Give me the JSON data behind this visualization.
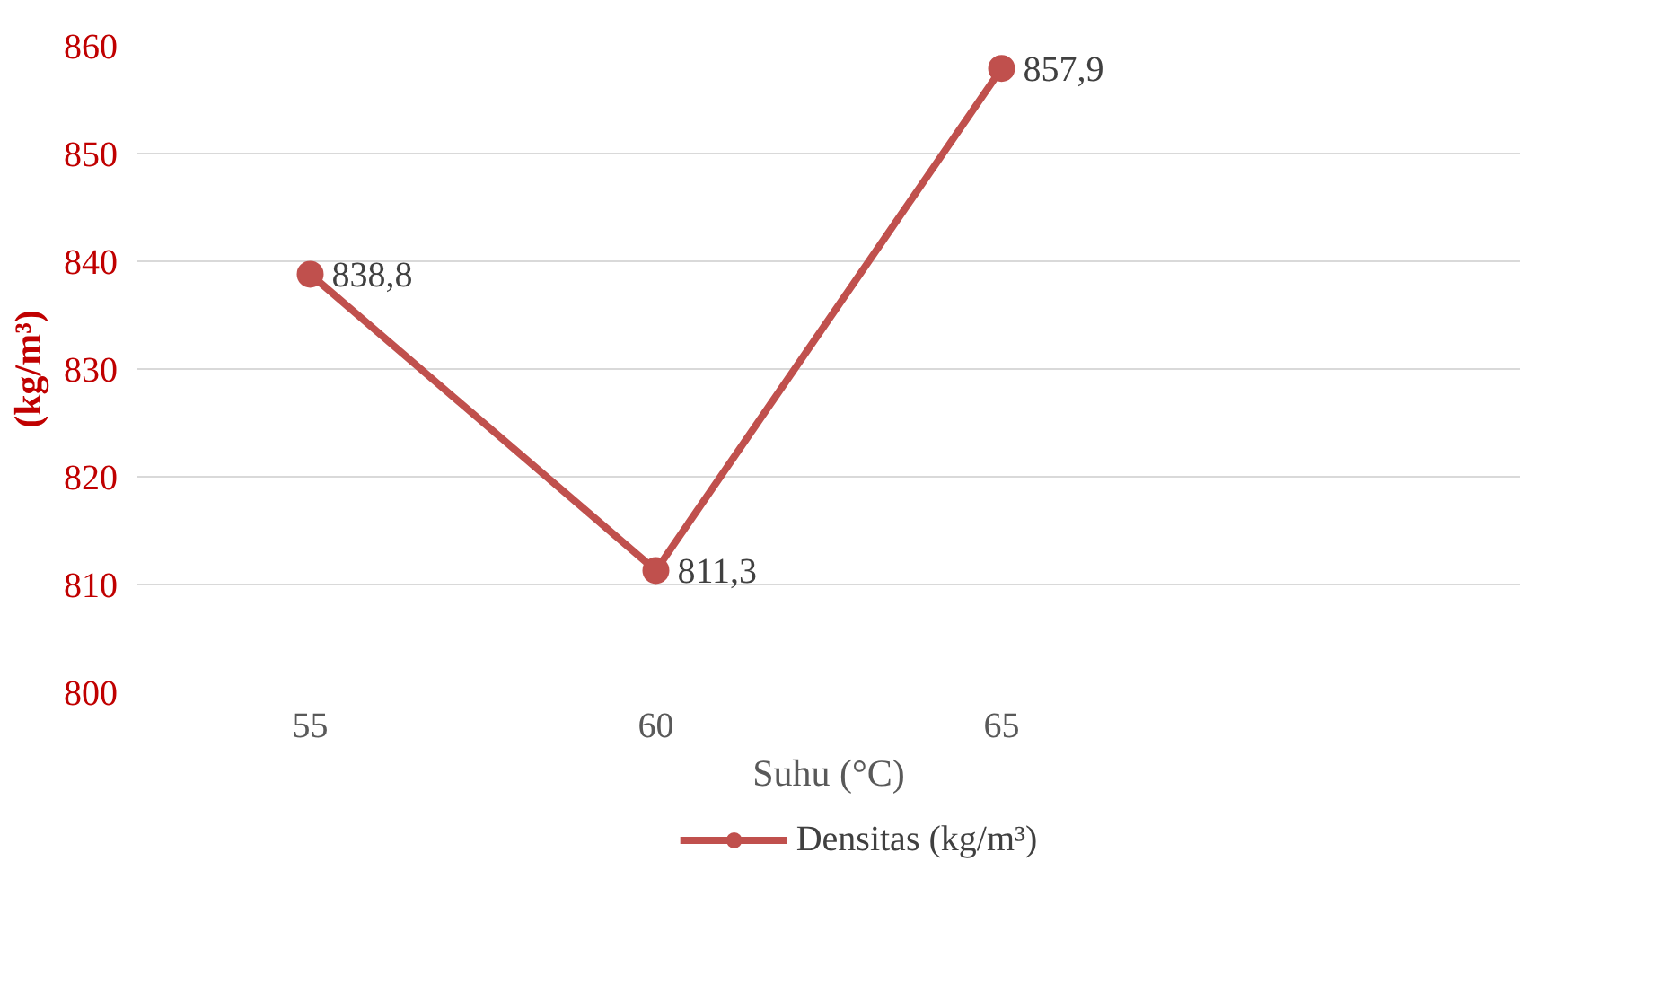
{
  "chart_data": {
    "type": "line",
    "xlabel": "Suhu (°C)",
    "ylabel": "(kg/m³)",
    "categories": [
      "55",
      "60",
      "65",
      null
    ],
    "series": [
      {
        "name": "Densitas (kg/m³)",
        "color": "#c0504d",
        "values": [
          838.8,
          811.3,
          857.9,
          null
        ],
        "value_labels": [
          "838,8",
          "811,3",
          "857,9",
          null
        ]
      }
    ],
    "ylim": [
      800,
      860
    ],
    "yticks": [
      800,
      810,
      820,
      830,
      840,
      850,
      860
    ],
    "grid": "y",
    "legend": "bottom",
    "marker": "circle",
    "line_style": "solid"
  }
}
